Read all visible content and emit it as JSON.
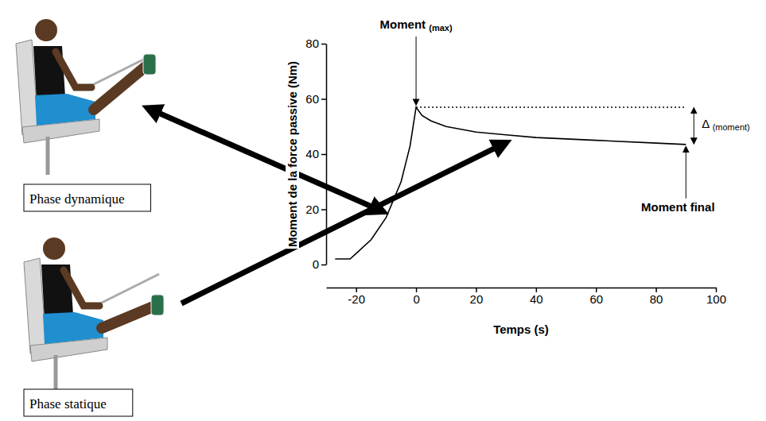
{
  "chart_data": {
    "type": "line",
    "x_label": "Temps (s)",
    "y_label": "Moment de la force passive (Nm)",
    "series": [
      {
        "x": [
          -27,
          -22,
          -20,
          -15,
          -10,
          -5,
          -2,
          0,
          2,
          5,
          10,
          20,
          30,
          40,
          60,
          80,
          90
        ],
        "values": [
          2,
          2,
          4,
          9,
          17,
          30,
          43,
          57,
          54,
          52,
          50,
          48,
          47,
          46,
          45,
          44,
          43.5
        ],
        "color": "#000000",
        "line_style": "solid"
      },
      {
        "x": [
          0,
          90
        ],
        "values": [
          57,
          57
        ],
        "color": "#000000",
        "line_style": "dotted"
      }
    ],
    "xlim": [
      -30,
      100
    ],
    "xticks": [
      -20,
      0,
      20,
      40,
      60,
      80,
      100
    ],
    "ylim": [
      0,
      80
    ],
    "yticks": [
      0,
      20,
      40,
      60,
      80
    ],
    "annotations": [
      "Moment (max)",
      "Δ (moment)",
      "Moment final",
      "Phase dynamique",
      "Phase statique"
    ]
  }
}
